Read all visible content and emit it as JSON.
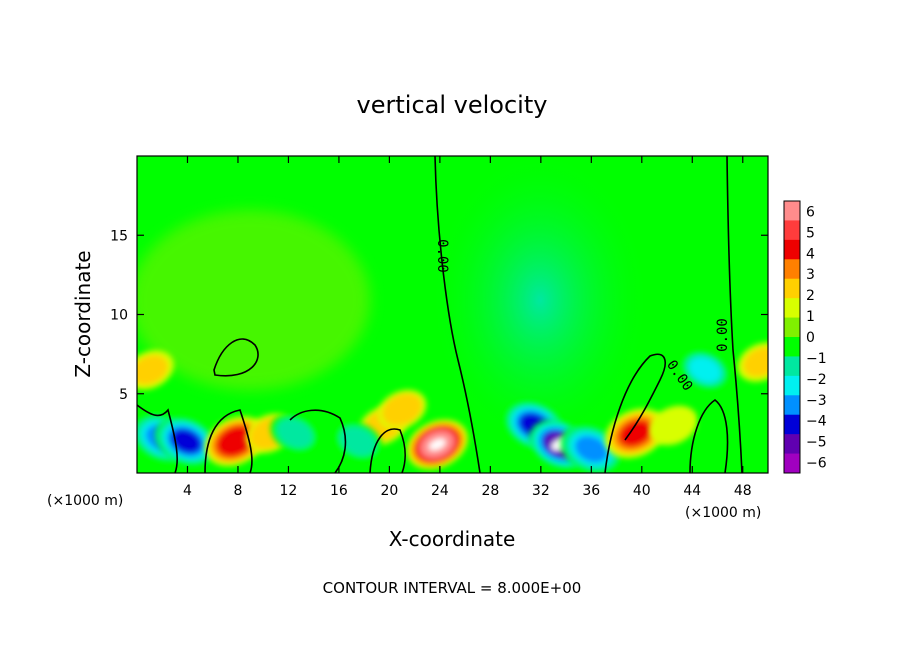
{
  "chart_data": {
    "type": "heatmap",
    "title": "vertical velocity",
    "xlabel": "X-coordinate",
    "ylabel": "Z-coordinate",
    "x_unit_left": "(×1000 m)",
    "x_unit_right": "(×1000 m)",
    "xlim": [
      0,
      50
    ],
    "ylim": [
      0,
      20
    ],
    "x_ticks": [
      4,
      8,
      12,
      16,
      20,
      24,
      28,
      32,
      36,
      40,
      44,
      48
    ],
    "x_tick_labels": [
      "4",
      "8",
      "12",
      "16",
      "20",
      "24",
      "28",
      "32",
      "36",
      "40",
      "44",
      "48"
    ],
    "y_ticks": [
      5,
      10,
      15
    ],
    "y_tick_labels": [
      "5",
      "10",
      "15"
    ],
    "colorbar": {
      "levels": [
        6,
        5,
        4,
        3,
        2,
        1,
        0,
        -1,
        -2,
        -3,
        -4,
        -5,
        -6
      ],
      "labels": [
        "6",
        "5",
        "4",
        "3",
        "2",
        "1",
        "0",
        "−1",
        "−2",
        "−3",
        "−4",
        "−5",
        "−6"
      ],
      "colors": [
        "#ff8c8c",
        "#ff3c3c",
        "#ee0000",
        "#ff8000",
        "#ffd000",
        "#d8ff00",
        "#80f000",
        "#00ff00",
        "#00e8a0",
        "#00f0f0",
        "#0090ff",
        "#0000d8",
        "#6000b0",
        "#a000c0"
      ]
    },
    "contour_labels": [
      "0.00",
      "0.00",
      "0.00"
    ],
    "features": [
      {
        "x": 2.0,
        "z": 2.2,
        "w": -3.5
      },
      {
        "x": 3.9,
        "z": 2.0,
        "w": -4.5
      },
      {
        "x": 7.8,
        "z": 2.0,
        "w": 4.5
      },
      {
        "x": 10.5,
        "z": 2.5,
        "w": 2.5
      },
      {
        "x": 12.5,
        "z": 2.5,
        "w": -1.5
      },
      {
        "x": 19.5,
        "z": 3.0,
        "w": 2.5
      },
      {
        "x": 21.0,
        "z": 4.0,
        "w": 2.5
      },
      {
        "x": 17.5,
        "z": 2.0,
        "w": -1.5
      },
      {
        "x": 23.8,
        "z": 1.8,
        "w": 6.5
      },
      {
        "x": 31.5,
        "z": 3.0,
        "w": -5.0
      },
      {
        "x": 33.5,
        "z": 1.8,
        "w": -6.0
      },
      {
        "x": 36.0,
        "z": 1.5,
        "w": -4.0
      },
      {
        "x": 39.5,
        "z": 2.5,
        "w": 4.0
      },
      {
        "x": 42.5,
        "z": 3.0,
        "w": 1.5
      },
      {
        "x": 45.0,
        "z": 6.5,
        "w": -3.0
      },
      {
        "x": 49.5,
        "z": 7.0,
        "w": 2.0
      },
      {
        "x": 1.0,
        "z": 6.5,
        "w": 2.0
      },
      {
        "x": 46.5,
        "z": 3.0,
        "w": -1.0
      }
    ]
  },
  "footer": {
    "contour_interval": "CONTOUR INTERVAL = 8.000E+00"
  }
}
